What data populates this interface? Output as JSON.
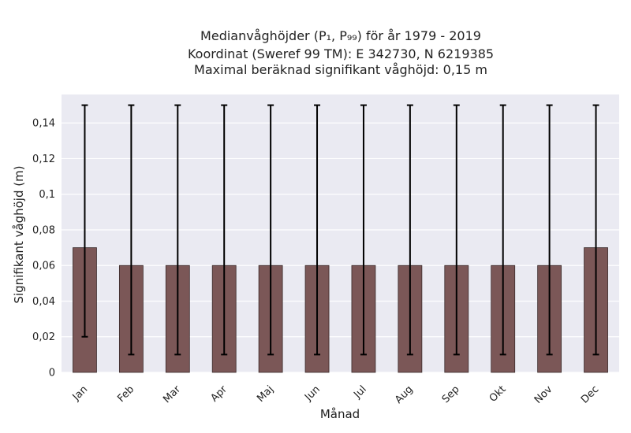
{
  "chart_data": {
    "type": "bar",
    "title_lines": [
      "Medianvåghöjder (P₁, P₉₉) för år 1979 - 2019",
      "Koordinat (Sweref 99 TM): E 342730, N 6219385",
      "Maximal beräknad signifikant våghöjd: 0,15 m"
    ],
    "xlabel": "Månad",
    "ylabel": "Signifikant våghöjd (m)",
    "categories": [
      "Jan",
      "Feb",
      "Mar",
      "Apr",
      "Maj",
      "Jun",
      "Jul",
      "Aug",
      "Sep",
      "Okt",
      "Nov",
      "Dec"
    ],
    "values": [
      0.07,
      0.06,
      0.06,
      0.06,
      0.06,
      0.06,
      0.06,
      0.06,
      0.06,
      0.06,
      0.06,
      0.07
    ],
    "error_low": [
      0.02,
      0.01,
      0.01,
      0.01,
      0.01,
      0.01,
      0.01,
      0.01,
      0.01,
      0.01,
      0.01,
      0.01
    ],
    "error_high": [
      0.15,
      0.15,
      0.15,
      0.15,
      0.15,
      0.15,
      0.15,
      0.15,
      0.15,
      0.15,
      0.15,
      0.15
    ],
    "ylim": [
      0,
      0.156
    ],
    "yticks": [
      0,
      0.02,
      0.04,
      0.06,
      0.08,
      0.1,
      0.12,
      0.14
    ],
    "ytick_labels": [
      "0",
      "0,02",
      "0,04",
      "0,06",
      "0,08",
      "0,1",
      "0,12",
      "0,14"
    ],
    "grid": true,
    "colors": {
      "bar": "#7b5757",
      "bar_edge": "#3a2a2a",
      "error": "#000000",
      "plot_bg": "#eaeaf2",
      "grid": "#ffffff"
    }
  }
}
